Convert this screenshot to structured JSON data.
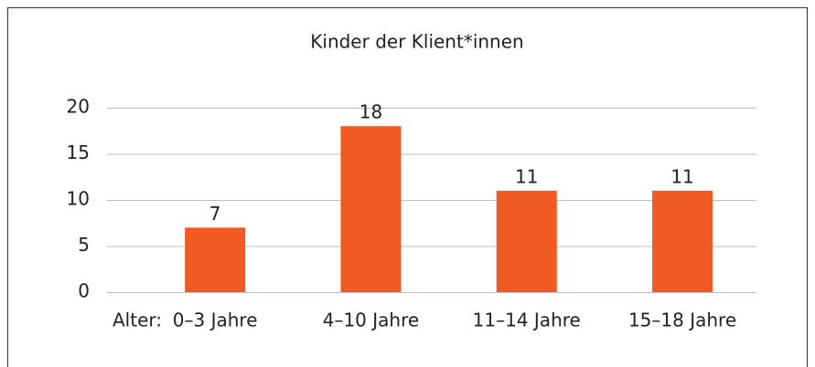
{
  "chart_data": {
    "type": "bar",
    "title": "Kinder der Klient*innen",
    "x_label": "Alter:",
    "categories": [
      "0–3 Jahre",
      "4–10 Jahre",
      "11–14 Jahre",
      "15–18 Jahre"
    ],
    "values": [
      7,
      18,
      11,
      11
    ],
    "color": "#f15a22",
    "ylim": [
      0,
      20
    ],
    "yticks": [
      0,
      5,
      10,
      15,
      20
    ],
    "grid": true
  }
}
